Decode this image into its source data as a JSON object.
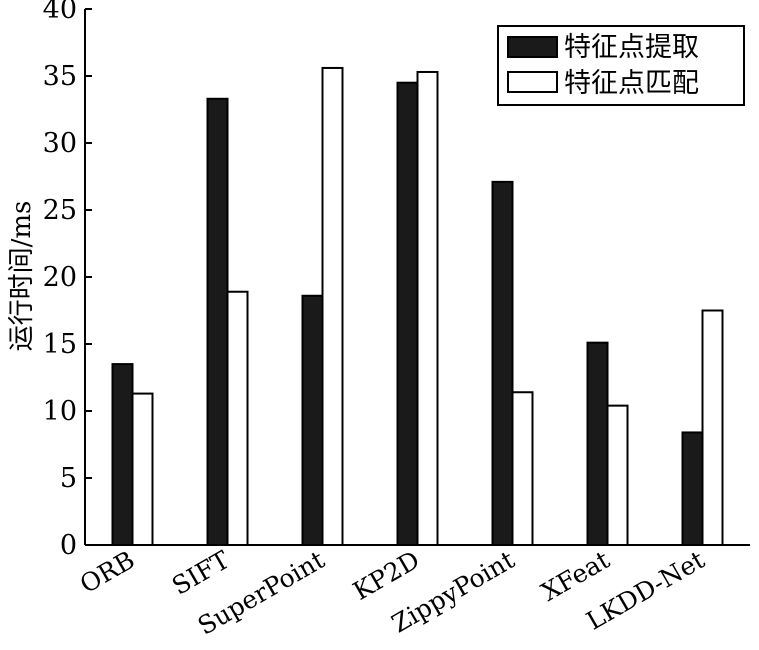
{
  "chart_data": {
    "type": "bar",
    "categories": [
      "ORB",
      "SIFT",
      "SuperPoint",
      "KP2D",
      "ZippyPoint",
      "XFeat",
      "LKDD-Net"
    ],
    "series": [
      {
        "name": "特征点提取",
        "values": [
          13.5,
          33.3,
          18.6,
          34.5,
          27.1,
          15.1,
          8.4
        ],
        "color": "#1a1a1a"
      },
      {
        "name": "特征点匹配",
        "values": [
          11.3,
          18.9,
          35.6,
          35.3,
          11.4,
          10.4,
          17.5
        ],
        "color": "#ffffff"
      }
    ],
    "ylabel": "运行时间/ms",
    "xlabel": "",
    "ylim": [
      0,
      40
    ],
    "yticks": [
      0,
      5,
      10,
      15,
      20,
      25,
      30,
      35,
      40
    ],
    "grid": false,
    "legend_position": "top-right"
  }
}
